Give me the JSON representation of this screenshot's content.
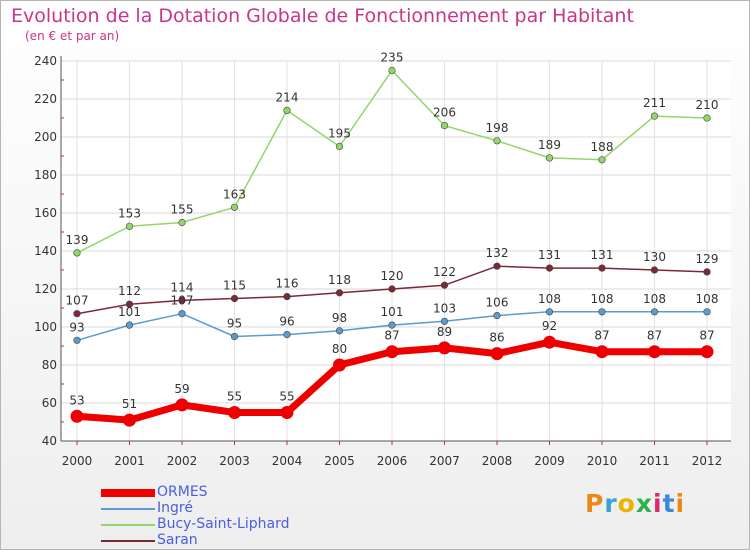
{
  "header": {
    "title": "Evolution de la Dotation Globale de Fonctionnement par Habitant",
    "subtitle": "(en € et par an)"
  },
  "logo": {
    "text": "Proxiti",
    "colors": [
      "#e88a1a",
      "#3aa0d8",
      "#e8b400",
      "#2cb24a",
      "#d82c6c",
      "#3a8ad8",
      "#e88a1a"
    ]
  },
  "chart_data": {
    "type": "line",
    "categories": [
      "2000",
      "2001",
      "2002",
      "2003",
      "2004",
      "2005",
      "2006",
      "2007",
      "2008",
      "2009",
      "2010",
      "2011",
      "2012"
    ],
    "ylim": [
      40,
      240
    ],
    "yticks": [
      40,
      60,
      80,
      100,
      120,
      140,
      160,
      180,
      200,
      220,
      240
    ],
    "grid": true,
    "series": [
      {
        "name": "ORMES",
        "color": "#ee0000",
        "values": [
          53,
          51,
          59,
          55,
          55,
          80,
          87,
          89,
          86,
          92,
          87,
          87,
          87
        ]
      },
      {
        "name": "Ingré",
        "color": "#5b9bd0",
        "values": [
          93,
          101,
          107,
          95,
          96,
          98,
          101,
          103,
          106,
          108,
          108,
          108,
          108
        ]
      },
      {
        "name": "Bucy-Saint-Liphard",
        "color": "#92d66a",
        "values": [
          139,
          153,
          155,
          163,
          214,
          195,
          235,
          206,
          198,
          189,
          188,
          211,
          210
        ]
      },
      {
        "name": "Saran",
        "color": "#7a2a36",
        "values": [
          107,
          112,
          114,
          115,
          116,
          118,
          120,
          122,
          132,
          131,
          131,
          130,
          129
        ]
      }
    ]
  }
}
